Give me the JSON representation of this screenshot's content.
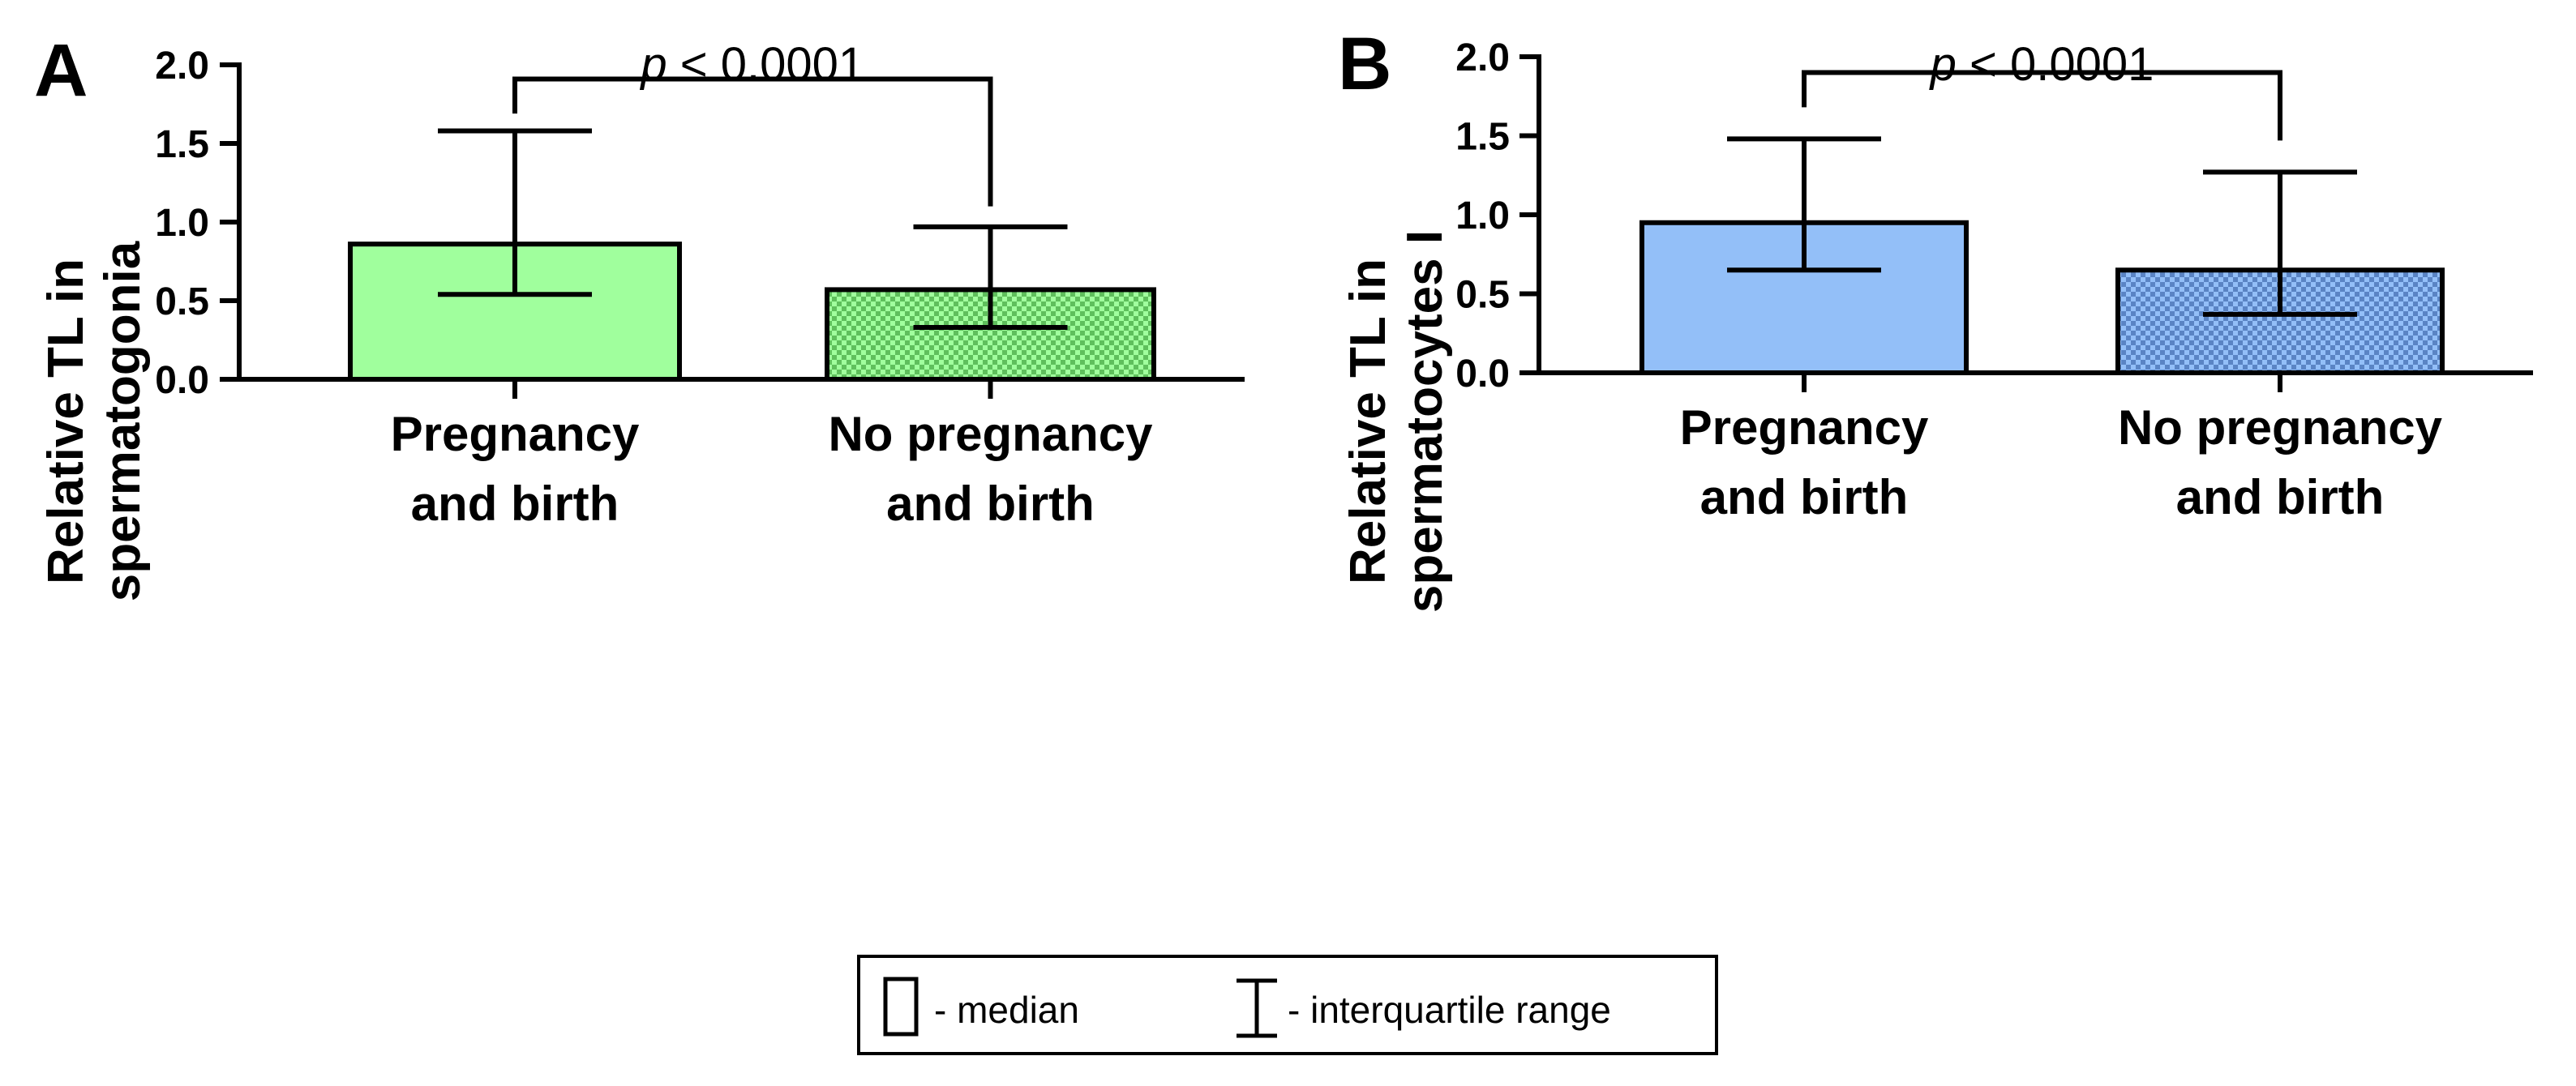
{
  "chart_data": [
    {
      "panel_label": "A",
      "type": "bar",
      "categories": [
        [
          "Pregnancy",
          "and birth"
        ],
        [
          "No pregnancy",
          "and birth"
        ]
      ],
      "values": [
        0.86,
        0.57
      ],
      "error": [
        {
          "low": 0.54,
          "high": 1.58
        },
        {
          "low": 0.33,
          "high": 0.97
        }
      ],
      "patterns": [
        "solid",
        "checker"
      ],
      "ylabel": [
        "Relative TL in",
        "spermatogonia"
      ],
      "ylim": [
        0,
        2.0
      ],
      "yticks": [
        "0.0",
        "0.5",
        "1.0",
        "1.5",
        "2.0"
      ],
      "annotation": {
        "p_label": "p",
        "p_text": " < 0.0001",
        "bracket_y": 1.91,
        "left_end": 1.69,
        "right_end": 1.1
      },
      "colors": {
        "fill": "#a0ff9d",
        "checker": "#5fbf5c"
      }
    },
    {
      "panel_label": "B",
      "type": "bar",
      "categories": [
        [
          "Pregnancy",
          "and birth"
        ],
        [
          "No pregnancy",
          "and birth"
        ]
      ],
      "values": [
        0.95,
        0.65
      ],
      "error": [
        {
          "low": 0.65,
          "high": 1.48
        },
        {
          "low": 0.37,
          "high": 1.27
        }
      ],
      "patterns": [
        "solid",
        "checker"
      ],
      "ylabel": [
        "Relative TL in",
        "spermatocytes I"
      ],
      "ylim": [
        0,
        2.0
      ],
      "yticks": [
        "0.0",
        "0.5",
        "1.0",
        "1.5",
        "2.0"
      ],
      "annotation": {
        "p_label": "p",
        "p_text": " < 0.0001",
        "bracket_y": 1.9,
        "left_end": 1.68,
        "right_end": 1.47
      },
      "colors": {
        "fill": "#93bff8",
        "checker": "#5a84c4"
      }
    }
  ],
  "legend": {
    "bar_text": "- median",
    "error_text": "- interquartile range"
  }
}
